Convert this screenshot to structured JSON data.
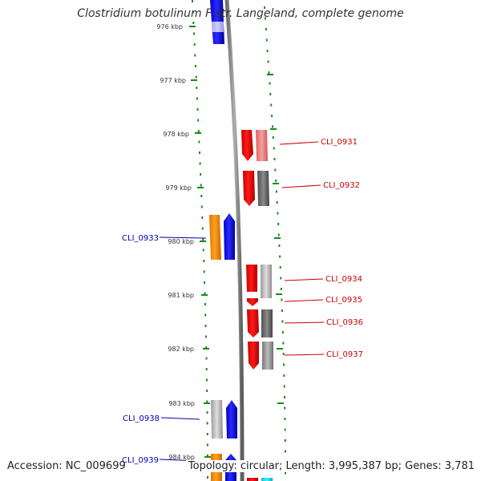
{
  "title": "Clostridium botulinum F str. Langeland, complete genome",
  "footer": {
    "accession": "Accession: NC_009699",
    "summary": "Topology: circular; Length: 3,995,387 bp; Genes: 3,781"
  },
  "colors": {
    "forward_label": "#cc0000",
    "reverse_label": "#0000b0",
    "backbone": "#8c8c8c",
    "scale_tick": "#1a8a1a",
    "scale_label": "#333333"
  },
  "scale_labels": [
    "976 kbp",
    "977 kbp",
    "978 kbp",
    "979 kbp",
    "980 kbp",
    "981 kbp",
    "982 kbp",
    "983 kbp",
    "984 kbp"
  ],
  "forward_genes": [
    "CLI_0931",
    "CLI_0932",
    "CLI_0934",
    "CLI_0935",
    "CLI_0936",
    "CLI_0937"
  ],
  "reverse_genes": [
    "CLI_0933",
    "CLI_0938",
    "CLI_0939"
  ]
}
